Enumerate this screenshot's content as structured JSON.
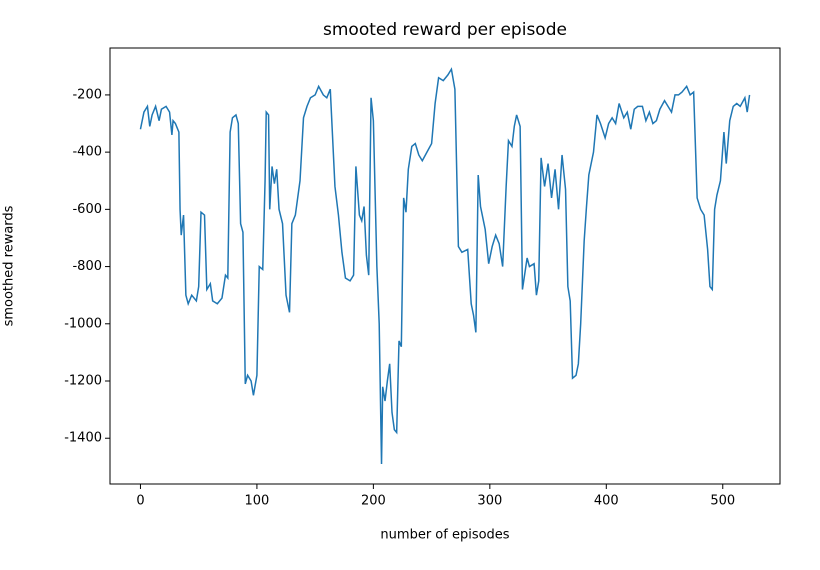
{
  "chart_data": {
    "type": "line",
    "title": "smooted reward per episode",
    "x_label": "number of episodes",
    "y_label": "smoothed rewards",
    "xlim": [
      -26.15,
      549.15
    ],
    "ylim": [
      -1560,
      -36
    ],
    "xticks": [
      0,
      100,
      200,
      300,
      400,
      500
    ],
    "yticks": [
      -1400,
      -1200,
      -1000,
      -800,
      -600,
      -400,
      -200
    ],
    "grid": false,
    "x": [
      0,
      3,
      6,
      8,
      10,
      13,
      16,
      18,
      22,
      25,
      27,
      28,
      30,
      33,
      34,
      35,
      37,
      39,
      41,
      44,
      48,
      50,
      52,
      55,
      57,
      60,
      62,
      66,
      70,
      73,
      75,
      77,
      79,
      82,
      84,
      86,
      88,
      90,
      92,
      95,
      97,
      100,
      102,
      105,
      107,
      108,
      110,
      111,
      113,
      115,
      117,
      119,
      122,
      125,
      128,
      130,
      133,
      137,
      140,
      143,
      146,
      150,
      153,
      157,
      160,
      163,
      167,
      170,
      173,
      176,
      180,
      183,
      185,
      188,
      190,
      192,
      194,
      196,
      198,
      200,
      203,
      205,
      207,
      208,
      210,
      212,
      214,
      216,
      218,
      220,
      222,
      224,
      226,
      228,
      230,
      233,
      236,
      239,
      242,
      246,
      250,
      253,
      256,
      260,
      264,
      267,
      270,
      273,
      276,
      281,
      284,
      286,
      288,
      290,
      292,
      296,
      299,
      302,
      305,
      308,
      311,
      314,
      316,
      319,
      321,
      323,
      326,
      328,
      332,
      334,
      338,
      340,
      342,
      344,
      347,
      350,
      353,
      356,
      359,
      362,
      365,
      367,
      369,
      371,
      374,
      376,
      378,
      381,
      383,
      385,
      389,
      392,
      395,
      399,
      402,
      405,
      408,
      411,
      415,
      418,
      421,
      424,
      427,
      431,
      434,
      437,
      440,
      443,
      446,
      450,
      453,
      456,
      459,
      462,
      465,
      469,
      472,
      475,
      478,
      481,
      484,
      487,
      489,
      491,
      493,
      495,
      498,
      501,
      503,
      506,
      509,
      512,
      515,
      519,
      521,
      523
    ],
    "series": [
      {
        "name": "smoothed reward",
        "color": "#1f77b4",
        "values": [
          -320,
          -260,
          -240,
          -310,
          -270,
          -240,
          -290,
          -250,
          -240,
          -260,
          -340,
          -290,
          -300,
          -330,
          -600,
          -690,
          -620,
          -900,
          -930,
          -900,
          -920,
          -870,
          -610,
          -620,
          -880,
          -860,
          -920,
          -930,
          -910,
          -830,
          -840,
          -330,
          -280,
          -270,
          -300,
          -650,
          -680,
          -1210,
          -1180,
          -1200,
          -1250,
          -1180,
          -800,
          -810,
          -500,
          -260,
          -270,
          -600,
          -450,
          -510,
          -460,
          -600,
          -650,
          -900,
          -960,
          -650,
          -620,
          -500,
          -280,
          -240,
          -210,
          -200,
          -170,
          -200,
          -210,
          -180,
          -520,
          -620,
          -750,
          -840,
          -850,
          -830,
          -450,
          -620,
          -640,
          -590,
          -760,
          -830,
          -210,
          -290,
          -800,
          -1000,
          -1490,
          -1220,
          -1270,
          -1200,
          -1140,
          -1310,
          -1370,
          -1380,
          -1060,
          -1080,
          -560,
          -610,
          -460,
          -380,
          -370,
          -410,
          -430,
          -400,
          -370,
          -230,
          -140,
          -150,
          -130,
          -110,
          -180,
          -730,
          -750,
          -740,
          -930,
          -970,
          -1030,
          -480,
          -590,
          -670,
          -790,
          -730,
          -690,
          -720,
          -800,
          -520,
          -360,
          -380,
          -310,
          -270,
          -310,
          -880,
          -770,
          -800,
          -790,
          -900,
          -850,
          -420,
          -520,
          -440,
          -560,
          -460,
          -600,
          -410,
          -530,
          -870,
          -920,
          -1190,
          -1180,
          -1140,
          -1000,
          -710,
          -590,
          -480,
          -400,
          -270,
          -300,
          -350,
          -300,
          -280,
          -300,
          -230,
          -280,
          -260,
          -320,
          -250,
          -240,
          -240,
          -290,
          -260,
          -300,
          -290,
          -250,
          -220,
          -240,
          -260,
          -200,
          -200,
          -190,
          -170,
          -200,
          -190,
          -560,
          -600,
          -620,
          -740,
          -870,
          -880,
          -600,
          -550,
          -500,
          -330,
          -440,
          -290,
          -240,
          -230,
          -240,
          -210,
          -260,
          -200
        ]
      }
    ]
  }
}
